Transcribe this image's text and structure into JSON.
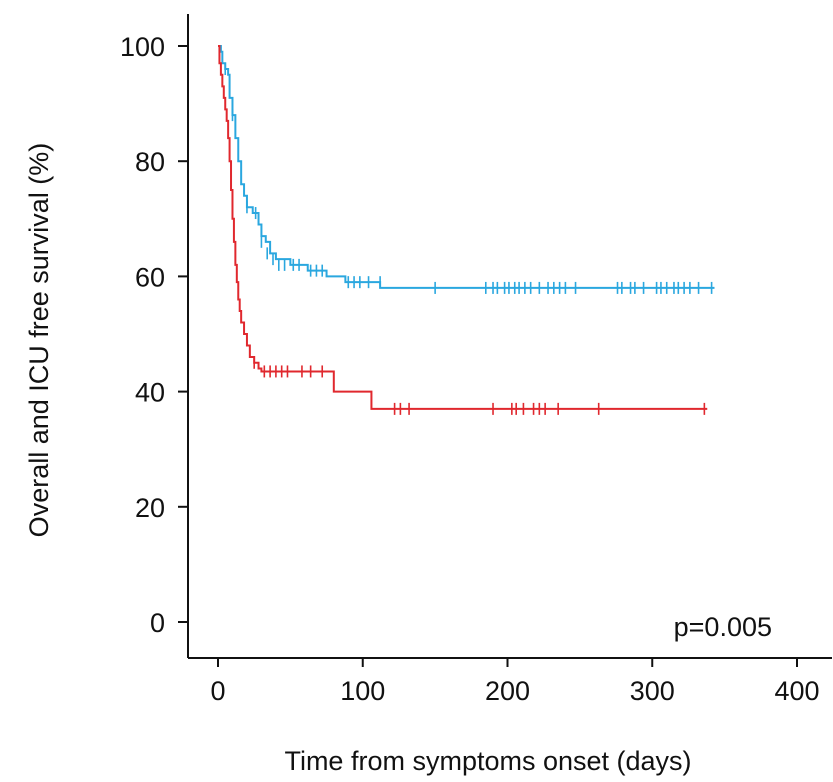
{
  "chart_data": {
    "type": "line",
    "step": true,
    "xlabel": "Time from symptoms onset (days)",
    "ylabel": "Overall and  ICU free survival (%)",
    "xlim": [
      0,
      400
    ],
    "ylim": [
      0,
      100
    ],
    "xticks": [
      "0",
      "100",
      "200",
      "300",
      "400"
    ],
    "yticks": [
      "0",
      "20",
      "40",
      "60",
      "80",
      "100"
    ],
    "grid": false,
    "legend": "none",
    "annotation": "p=0.005",
    "series": [
      {
        "color": "#2aa7df",
        "points": [
          [
            0,
            100
          ],
          [
            2,
            99
          ],
          [
            3,
            97
          ],
          [
            5,
            96
          ],
          [
            7,
            95
          ],
          [
            8,
            91
          ],
          [
            10,
            88
          ],
          [
            12,
            84
          ],
          [
            14,
            80
          ],
          [
            16,
            76
          ],
          [
            18,
            74
          ],
          [
            20,
            72
          ],
          [
            24,
            71
          ],
          [
            28,
            69
          ],
          [
            30,
            67
          ],
          [
            33,
            66
          ],
          [
            36,
            64
          ],
          [
            40,
            63
          ],
          [
            50,
            62
          ],
          [
            62,
            61
          ],
          [
            75,
            60
          ],
          [
            88,
            59
          ],
          [
            100,
            59
          ],
          [
            112,
            58
          ],
          [
            343,
            58
          ]
        ],
        "censors": [
          [
            5,
            96
          ],
          [
            10,
            88
          ],
          [
            20,
            72
          ],
          [
            26,
            71
          ],
          [
            30,
            66
          ],
          [
            34,
            64
          ],
          [
            38,
            63
          ],
          [
            42,
            62
          ],
          [
            46,
            62
          ],
          [
            52,
            62
          ],
          [
            56,
            62
          ],
          [
            64,
            61
          ],
          [
            68,
            61
          ],
          [
            72,
            61
          ],
          [
            90,
            59
          ],
          [
            94,
            59
          ],
          [
            98,
            59
          ],
          [
            104,
            59
          ],
          [
            112,
            59
          ],
          [
            150,
            58
          ],
          [
            185,
            58
          ],
          [
            190,
            58
          ],
          [
            193,
            58
          ],
          [
            198,
            58
          ],
          [
            201,
            58
          ],
          [
            205,
            58
          ],
          [
            208,
            58
          ],
          [
            212,
            58
          ],
          [
            216,
            58
          ],
          [
            222,
            58
          ],
          [
            228,
            58
          ],
          [
            232,
            58
          ],
          [
            236,
            58
          ],
          [
            240,
            58
          ],
          [
            247,
            58
          ],
          [
            276,
            58
          ],
          [
            279,
            58
          ],
          [
            285,
            58
          ],
          [
            288,
            58
          ],
          [
            294,
            58
          ],
          [
            303,
            58
          ],
          [
            306,
            58
          ],
          [
            310,
            58
          ],
          [
            315,
            58
          ],
          [
            318,
            58
          ],
          [
            322,
            58
          ],
          [
            326,
            58
          ],
          [
            332,
            58
          ],
          [
            341,
            58
          ]
        ]
      },
      {
        "color": "#e0282e",
        "points": [
          [
            0,
            100
          ],
          [
            1,
            97
          ],
          [
            2,
            95
          ],
          [
            3,
            93
          ],
          [
            4,
            91
          ],
          [
            5,
            89
          ],
          [
            6,
            87
          ],
          [
            7,
            84
          ],
          [
            8,
            80
          ],
          [
            9,
            75
          ],
          [
            10,
            70
          ],
          [
            11,
            66
          ],
          [
            12,
            62
          ],
          [
            13,
            59
          ],
          [
            14,
            56
          ],
          [
            15,
            54
          ],
          [
            16,
            52
          ],
          [
            18,
            50
          ],
          [
            20,
            48
          ],
          [
            22,
            46
          ],
          [
            25,
            45
          ],
          [
            28,
            44
          ],
          [
            30,
            43.5
          ],
          [
            78,
            43.5
          ],
          [
            80,
            40
          ],
          [
            105,
            40
          ],
          [
            106,
            37
          ],
          [
            338,
            37
          ]
        ],
        "censors": [
          [
            25,
            45
          ],
          [
            32,
            43.5
          ],
          [
            36,
            43.5
          ],
          [
            40,
            43.5
          ],
          [
            44,
            43.5
          ],
          [
            48,
            43.5
          ],
          [
            58,
            43.5
          ],
          [
            64,
            43.5
          ],
          [
            72,
            43.5
          ],
          [
            122,
            37
          ],
          [
            126,
            37
          ],
          [
            132,
            37
          ],
          [
            190,
            37
          ],
          [
            203,
            37
          ],
          [
            206,
            37
          ],
          [
            211,
            37
          ],
          [
            218,
            37
          ],
          [
            222,
            37
          ],
          [
            226,
            37
          ],
          [
            235,
            37
          ],
          [
            263,
            37
          ],
          [
            336,
            37
          ]
        ]
      }
    ]
  }
}
